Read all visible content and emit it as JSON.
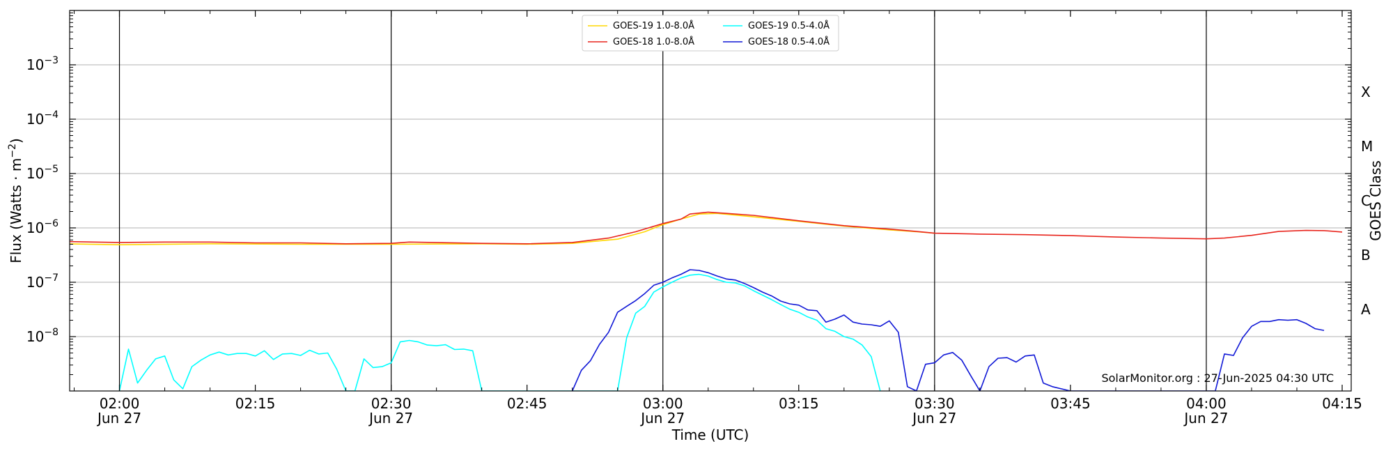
{
  "chart_data": {
    "type": "line",
    "xlabel": "Time (UTC)",
    "ylabel_main": "Flux (Watts · m",
    "ylabel_sup": "−2",
    "ylabel_close": ")",
    "y2label": "GOES Class",
    "watermark": "SolarMonitor.org : 27-Jun-2025 04:30 UTC",
    "xlim": [
      "01:54:30",
      "04:16:00"
    ],
    "ylim": [
      1e-09,
      0.01
    ],
    "yscale": "log",
    "y_ticks": [
      {
        "exp": -8,
        "base": "10",
        "sup": "−8"
      },
      {
        "exp": -7,
        "base": "10",
        "sup": "−7"
      },
      {
        "exp": -6,
        "base": "10",
        "sup": "−6"
      },
      {
        "exp": -5,
        "base": "10",
        "sup": "−5"
      },
      {
        "exp": -4,
        "base": "10",
        "sup": "−4"
      },
      {
        "exp": -3,
        "base": "10",
        "sup": "−3"
      }
    ],
    "x_ticks": [
      {
        "t": "02:00",
        "label": "02:00",
        "date": "Jun 27",
        "vline": true
      },
      {
        "t": "02:15",
        "label": "02:15",
        "date": "",
        "vline": false
      },
      {
        "t": "02:30",
        "label": "02:30",
        "date": "Jun 27",
        "vline": true
      },
      {
        "t": "02:45",
        "label": "02:45",
        "date": "",
        "vline": false
      },
      {
        "t": "03:00",
        "label": "03:00",
        "date": "Jun 27",
        "vline": true
      },
      {
        "t": "03:15",
        "label": "03:15",
        "date": "",
        "vline": false
      },
      {
        "t": "03:30",
        "label": "03:30",
        "date": "Jun 27",
        "vline": true
      },
      {
        "t": "03:45",
        "label": "03:45",
        "date": "",
        "vline": false
      },
      {
        "t": "04:00",
        "label": "04:00",
        "date": "Jun 27",
        "vline": true
      },
      {
        "t": "04:15",
        "label": "04:15",
        "date": "",
        "vline": false
      }
    ],
    "goes_classes": [
      {
        "label": "A",
        "exp": -7.5
      },
      {
        "label": "B",
        "exp": -6.5
      },
      {
        "label": "C",
        "exp": -5.5
      },
      {
        "label": "M",
        "exp": -4.5
      },
      {
        "label": "X",
        "exp": -3.5
      }
    ],
    "grid": "horizontal",
    "legend_position": "top-center",
    "series": [
      {
        "name": "GOES-19 1.0-8.0Å",
        "color": "#ffd700",
        "points": [
          [
            "01:54",
            "5.1e-7"
          ],
          [
            "02:00",
            "4.9e-7"
          ],
          [
            "02:10",
            "5.1e-7"
          ],
          [
            "02:20",
            "5.0e-7"
          ],
          [
            "02:30",
            "5.0e-7"
          ],
          [
            "02:40",
            "5.1e-7"
          ],
          [
            "02:45",
            "5.0e-7"
          ],
          [
            "02:50",
            "5.2e-7"
          ],
          [
            "02:55",
            "6.2e-7"
          ],
          [
            "02:58",
            "8.5e-7"
          ],
          [
            "03:00",
            "1.15e-6"
          ],
          [
            "03:02",
            "1.45e-6"
          ],
          [
            "03:04",
            "1.8e-6"
          ],
          [
            "03:06",
            "1.85e-6"
          ],
          [
            "03:10",
            "1.6e-6"
          ],
          [
            "03:15",
            "1.32e-6"
          ],
          [
            "03:20",
            "1.08e-6"
          ],
          [
            "03:25",
            "9.2e-7"
          ],
          [
            "03:28",
            "8.5e-7"
          ],
          [
            "03:30",
            "8.0e-7"
          ]
        ]
      },
      {
        "name": "GOES-18 1.0-8.0Å",
        "color": "#e8241c",
        "points": [
          [
            "01:54",
            "5.6e-7"
          ],
          [
            "02:00",
            "5.4e-7"
          ],
          [
            "02:05",
            "5.5e-7"
          ],
          [
            "02:10",
            "5.5e-7"
          ],
          [
            "02:15",
            "5.3e-7"
          ],
          [
            "02:20",
            "5.3e-7"
          ],
          [
            "02:25",
            "5.1e-7"
          ],
          [
            "02:30",
            "5.2e-7"
          ],
          [
            "02:32",
            "5.5e-7"
          ],
          [
            "02:40",
            "5.2e-7"
          ],
          [
            "02:45",
            "5.1e-7"
          ],
          [
            "02:50",
            "5.4e-7"
          ],
          [
            "02:54",
            "6.5e-7"
          ],
          [
            "02:57",
            "8.5e-7"
          ],
          [
            "03:00",
            "1.2e-6"
          ],
          [
            "03:02",
            "1.45e-6"
          ],
          [
            "03:03",
            "1.8e-6"
          ],
          [
            "03:05",
            "1.95e-6"
          ],
          [
            "03:07",
            "1.85e-6"
          ],
          [
            "03:10",
            "1.7e-6"
          ],
          [
            "03:15",
            "1.35e-6"
          ],
          [
            "03:20",
            "1.1e-6"
          ],
          [
            "03:25",
            "9.5e-7"
          ],
          [
            "03:28",
            "8.6e-7"
          ],
          [
            "03:30",
            "8.0e-7"
          ],
          [
            "03:35",
            "7.7e-7"
          ],
          [
            "03:40",
            "7.5e-7"
          ],
          [
            "03:45",
            "7.2e-7"
          ],
          [
            "03:50",
            "6.8e-7"
          ],
          [
            "03:55",
            "6.5e-7"
          ],
          [
            "04:00",
            "6.3e-7"
          ],
          [
            "04:02",
            "6.5e-7"
          ],
          [
            "04:05",
            "7.3e-7"
          ],
          [
            "04:08",
            "8.6e-7"
          ],
          [
            "04:11",
            "9.0e-7"
          ],
          [
            "04:13",
            "8.9e-7"
          ],
          [
            "04:15",
            "8.4e-7"
          ]
        ]
      },
      {
        "name": "GOES-19 0.5-4.0Å",
        "color": "#00ffff",
        "points": [
          [
            "02:00",
            "1e-9"
          ],
          [
            "02:01",
            "5.9e-9"
          ],
          [
            "02:02",
            "1.4e-9"
          ],
          [
            "02:03",
            "2.4e-9"
          ],
          [
            "02:04",
            "3.9e-9"
          ],
          [
            "02:05",
            "4.4e-9"
          ],
          [
            "02:06",
            "1.6e-9"
          ],
          [
            "02:07",
            "1.1e-9"
          ],
          [
            "02:08",
            "2.8e-9"
          ],
          [
            "02:09",
            "3.7e-9"
          ],
          [
            "02:10",
            "4.6e-9"
          ],
          [
            "02:11",
            "5.2e-9"
          ],
          [
            "02:12",
            "4.6e-9"
          ],
          [
            "02:13",
            "4.9e-9"
          ],
          [
            "02:14",
            "4.9e-9"
          ],
          [
            "02:15",
            "4.4e-9"
          ],
          [
            "02:16",
            "5.5e-9"
          ],
          [
            "02:17",
            "3.8e-9"
          ],
          [
            "02:18",
            "4.8e-9"
          ],
          [
            "02:19",
            "4.9e-9"
          ],
          [
            "02:20",
            "4.5e-9"
          ],
          [
            "02:21",
            "5.6e-9"
          ],
          [
            "02:22",
            "4.8e-9"
          ],
          [
            "02:23",
            "5.0e-9"
          ],
          [
            "02:24",
            "2.5e-9"
          ],
          [
            "02:25",
            "1e-9"
          ],
          [
            "02:26",
            "1e-9"
          ],
          [
            "02:27",
            "3.9e-9"
          ],
          [
            "02:28",
            "2.7e-9"
          ],
          [
            "02:29",
            "2.8e-9"
          ],
          [
            "02:30",
            "3.3e-9"
          ],
          [
            "02:31",
            "8.0e-9"
          ],
          [
            "02:32",
            "8.5e-9"
          ],
          [
            "02:33",
            "8.0e-9"
          ],
          [
            "02:34",
            "7.0e-9"
          ],
          [
            "02:35",
            "6.8e-9"
          ],
          [
            "02:36",
            "7.1e-9"
          ],
          [
            "02:37",
            "5.8e-9"
          ],
          [
            "02:38",
            "5.9e-9"
          ],
          [
            "02:39",
            "5.5e-9"
          ],
          [
            "02:40",
            "1e-9"
          ],
          [
            "02:55",
            "1e-9"
          ],
          [
            "02:56",
            "9.5e-9"
          ],
          [
            "02:57",
            "2.7e-8"
          ],
          [
            "02:58",
            "3.6e-8"
          ],
          [
            "02:59",
            "6.6e-8"
          ],
          [
            "03:00",
            "8.2e-8"
          ],
          [
            "03:01",
            "1.0e-7"
          ],
          [
            "03:02",
            "1.2e-7"
          ],
          [
            "03:03",
            "1.35e-7"
          ],
          [
            "03:04",
            "1.4e-7"
          ],
          [
            "03:05",
            "1.3e-7"
          ],
          [
            "03:06",
            "1.12e-7"
          ],
          [
            "03:07",
            "1.0e-7"
          ],
          [
            "03:08",
            "9.7e-8"
          ],
          [
            "03:09",
            "8.6e-8"
          ],
          [
            "03:10",
            "7.0e-8"
          ],
          [
            "03:11",
            "5.8e-8"
          ],
          [
            "03:12",
            "4.8e-8"
          ],
          [
            "03:13",
            "3.9e-8"
          ],
          [
            "03:14",
            "3.2e-8"
          ],
          [
            "03:15",
            "2.8e-8"
          ],
          [
            "03:16",
            "2.3e-8"
          ],
          [
            "03:17",
            "2.0e-8"
          ],
          [
            "03:18",
            "1.4e-8"
          ],
          [
            "03:19",
            "1.25e-8"
          ],
          [
            "03:20",
            "1.0e-8"
          ],
          [
            "03:21",
            "9.0e-9"
          ],
          [
            "03:22",
            "7.0e-9"
          ],
          [
            "03:23",
            "4.3e-9"
          ],
          [
            "03:24",
            "1e-9"
          ]
        ]
      },
      {
        "name": "GOES-18 0.5-4.0Å",
        "color": "#0f17d6",
        "points": [
          [
            "02:50",
            "1e-9"
          ],
          [
            "02:51",
            "2.4e-9"
          ],
          [
            "02:52",
            "3.6e-9"
          ],
          [
            "02:53",
            "7.2e-9"
          ],
          [
            "02:54",
            "1.2e-8"
          ],
          [
            "02:55",
            "2.8e-8"
          ],
          [
            "02:56",
            "3.6e-8"
          ],
          [
            "02:57",
            "4.6e-8"
          ],
          [
            "02:58",
            "6.2e-8"
          ],
          [
            "02:59",
            "8.8e-8"
          ],
          [
            "03:00",
            "1.0e-7"
          ],
          [
            "03:01",
            "1.2e-7"
          ],
          [
            "03:02",
            "1.4e-7"
          ],
          [
            "03:03",
            "1.7e-7"
          ],
          [
            "03:04",
            "1.65e-7"
          ],
          [
            "03:05",
            "1.5e-7"
          ],
          [
            "03:06",
            "1.3e-7"
          ],
          [
            "03:07",
            "1.15e-7"
          ],
          [
            "03:08",
            "1.1e-7"
          ],
          [
            "03:09",
            "9.5e-8"
          ],
          [
            "03:10",
            "8.0e-8"
          ],
          [
            "03:11",
            "6.6e-8"
          ],
          [
            "03:12",
            "5.6e-8"
          ],
          [
            "03:13",
            "4.5e-8"
          ],
          [
            "03:14",
            "4.0e-8"
          ],
          [
            "03:15",
            "3.8e-8"
          ],
          [
            "03:16",
            "3.1e-8"
          ],
          [
            "03:17",
            "3.0e-8"
          ],
          [
            "03:18",
            "1.85e-8"
          ],
          [
            "03:19",
            "2.1e-8"
          ],
          [
            "03:20",
            "2.5e-8"
          ],
          [
            "03:21",
            "1.85e-8"
          ],
          [
            "03:22",
            "1.7e-8"
          ],
          [
            "03:23",
            "1.65e-8"
          ],
          [
            "03:24",
            "1.55e-8"
          ],
          [
            "03:25",
            "1.95e-8"
          ],
          [
            "03:26",
            "1.2e-8"
          ],
          [
            "03:27",
            "1.2e-9"
          ],
          [
            "03:28",
            "1e-9"
          ],
          [
            "03:29",
            "3.1e-9"
          ],
          [
            "03:30",
            "3.3e-9"
          ],
          [
            "03:31",
            "4.6e-9"
          ],
          [
            "03:32",
            "5.1e-9"
          ],
          [
            "03:33",
            "3.7e-9"
          ],
          [
            "03:34",
            "1.9e-9"
          ],
          [
            "03:35",
            "1e-9"
          ],
          [
            "03:36",
            "2.8e-9"
          ],
          [
            "03:37",
            "4.0e-9"
          ],
          [
            "03:38",
            "4.1e-9"
          ],
          [
            "03:39",
            "3.4e-9"
          ],
          [
            "03:40",
            "4.4e-9"
          ],
          [
            "03:41",
            "4.6e-9"
          ],
          [
            "03:42",
            "1.4e-9"
          ],
          [
            "03:43",
            "1.2e-9"
          ],
          [
            "03:45",
            "1e-9"
          ],
          [
            "04:01",
            "1e-9"
          ],
          [
            "04:02",
            "4.8e-9"
          ],
          [
            "04:03",
            "4.5e-9"
          ],
          [
            "04:04",
            "9.5e-9"
          ],
          [
            "04:05",
            "1.55e-8"
          ],
          [
            "04:06",
            "1.9e-8"
          ],
          [
            "04:07",
            "1.9e-8"
          ],
          [
            "04:08",
            "2.05e-8"
          ],
          [
            "04:09",
            "2.0e-8"
          ],
          [
            "04:10",
            "2.05e-8"
          ],
          [
            "04:11",
            "1.75e-8"
          ],
          [
            "04:12",
            "1.4e-8"
          ],
          [
            "04:13",
            "1.3e-8"
          ]
        ]
      }
    ]
  }
}
